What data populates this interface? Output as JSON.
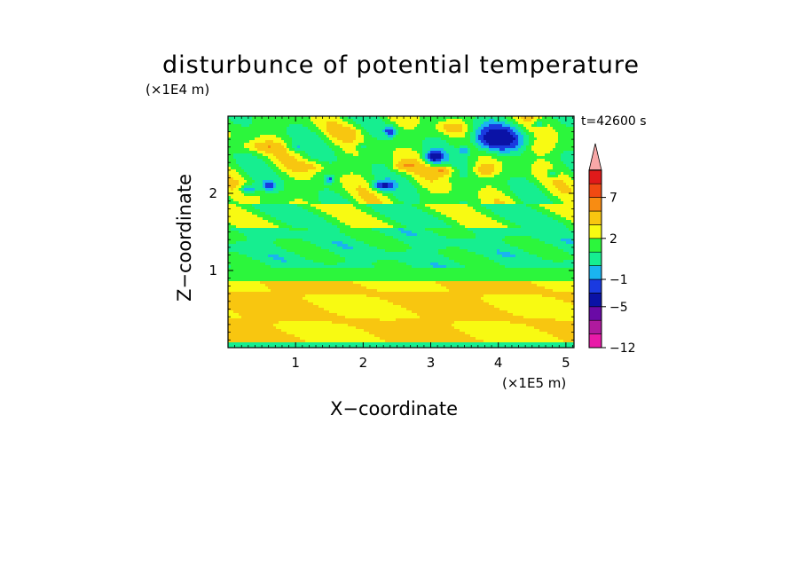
{
  "title": "disturbunce of potential temperature",
  "time_label": "t=42600 s",
  "chart_data": {
    "type": "heatmap",
    "title": "disturbunce of potential temperature",
    "xlabel": "X−coordinate",
    "ylabel": "Z−coordinate",
    "x_multiplier": "(×1E5 m)",
    "y_multiplier": "(×1E4 m)",
    "xlim": [
      0,
      5.12
    ],
    "ylim": [
      0,
      3.0
    ],
    "x_ticks": [
      1,
      2,
      3,
      4,
      5
    ],
    "y_ticks": [
      1,
      2
    ],
    "x_tick_labels": [
      "1",
      "2",
      "3",
      "4",
      "5"
    ],
    "y_tick_labels": [
      "1",
      "2"
    ],
    "colorbar": {
      "levels": [
        -12,
        -9,
        -7,
        -5,
        -3,
        -1,
        0,
        1,
        2,
        3,
        5,
        7,
        9
      ],
      "labels": [
        {
          "value": 7,
          "text": "7"
        },
        {
          "value": 2,
          "text": "2"
        },
        {
          "value": -1,
          "text": "−1"
        },
        {
          "value": -5,
          "text": "−5"
        },
        {
          "value": -12,
          "text": "−12"
        }
      ],
      "colors": [
        "#e81aa8",
        "#b01a9e",
        "#6a0aa6",
        "#0a12a6",
        "#1a3ae0",
        "#1ab4f0",
        "#16ee90",
        "#2cf63c",
        "#f8fa12",
        "#f8c610",
        "#f88c12",
        "#f04a12",
        "#e01a1a",
        "#f8a8a8"
      ],
      "extend": "max"
    },
    "field_description_regions": [
      {
        "z_range": [
          0.0,
          1.0
        ],
        "dominant_value_band": "0 to 2",
        "note": "yellow/orange near surface"
      },
      {
        "z_range": [
          1.0,
          1.6
        ],
        "dominant_value_band": "-1 to 1",
        "note": "green layer"
      },
      {
        "z_range": [
          1.7,
          3.0
        ],
        "dominant_value_band": "-5 to 3",
        "note": "waves with blue minima"
      }
    ]
  }
}
